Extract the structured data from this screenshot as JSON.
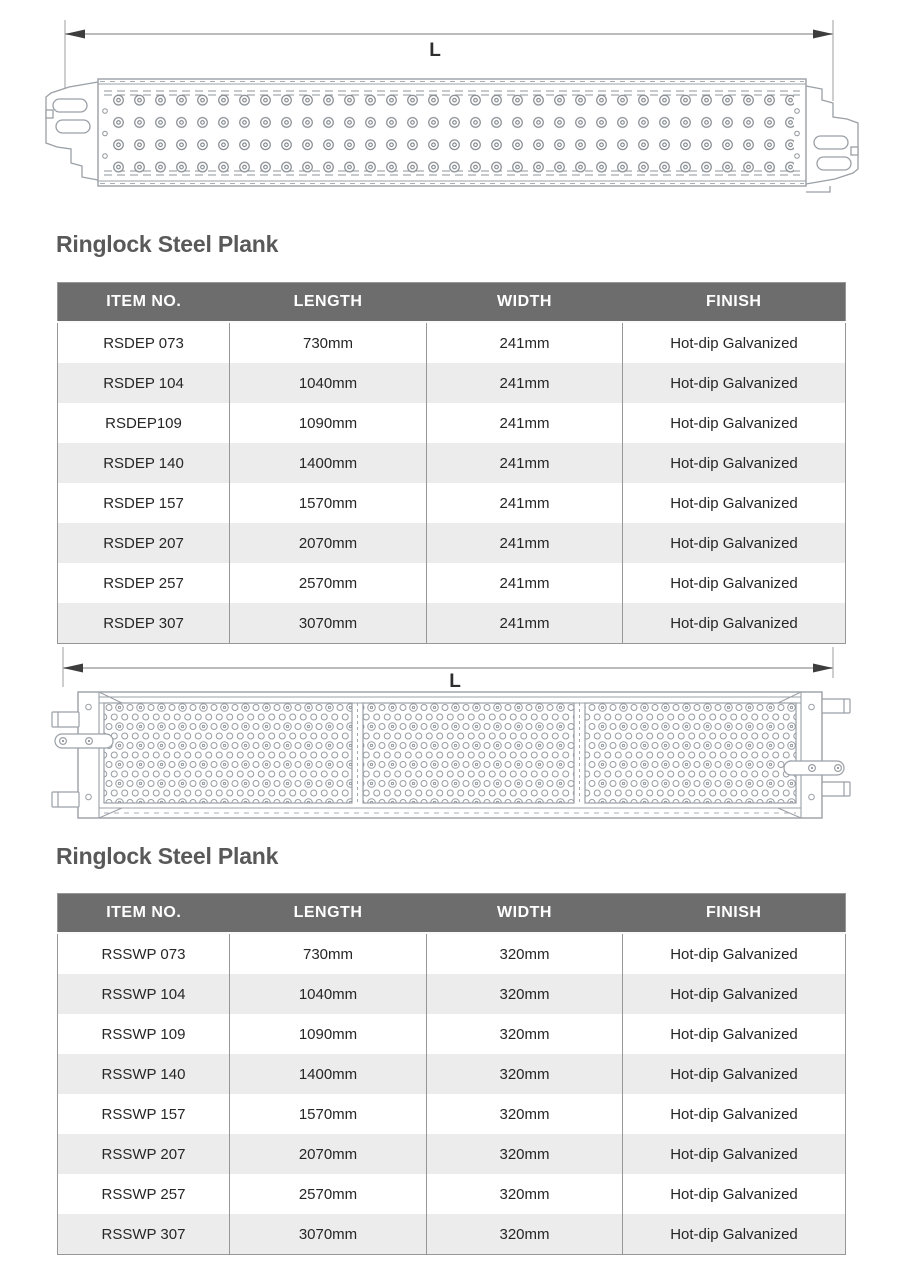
{
  "colors": {
    "table_header_bg": "#6d6d6d",
    "table_header_text": "#ffffff",
    "row_alt_bg": "#ececec",
    "table_border": "#979797",
    "heading_text": "#595959",
    "drawing_line": "#9aa0a6",
    "dimension_arrow": "#3d3d3d"
  },
  "sections": [
    {
      "heading": "Ringlock Steel Plank",
      "drawing": {
        "dim_label": "L"
      },
      "table": {
        "columns": [
          "ITEM NO.",
          "LENGTH",
          "WIDTH",
          "FINISH"
        ],
        "rows": [
          [
            "RSDEP 073",
            "730mm",
            "241mm",
            "Hot-dip Galvanized"
          ],
          [
            "RSDEP 104",
            "1040mm",
            "241mm",
            "Hot-dip Galvanized"
          ],
          [
            "RSDEP109",
            "1090mm",
            "241mm",
            "Hot-dip Galvanized"
          ],
          [
            "RSDEP 140",
            "1400mm",
            "241mm",
            "Hot-dip Galvanized"
          ],
          [
            "RSDEP 157",
            "1570mm",
            "241mm",
            "Hot-dip Galvanized"
          ],
          [
            "RSDEP 207",
            "2070mm",
            "241mm",
            "Hot-dip Galvanized"
          ],
          [
            "RSDEP 257",
            "2570mm",
            "241mm",
            "Hot-dip Galvanized"
          ],
          [
            "RSDEP 307",
            "3070mm",
            "241mm",
            "Hot-dip Galvanized"
          ]
        ]
      }
    },
    {
      "heading": "Ringlock Steel Plank",
      "drawing": {
        "dim_label": "L"
      },
      "table": {
        "columns": [
          "ITEM NO.",
          "LENGTH",
          "WIDTH",
          "FINISH"
        ],
        "rows": [
          [
            "RSSWP 073",
            "730mm",
            "320mm",
            "Hot-dip Galvanized"
          ],
          [
            "RSSWP 104",
            "1040mm",
            "320mm",
            "Hot-dip Galvanized"
          ],
          [
            "RSSWP 109",
            "1090mm",
            "320mm",
            "Hot-dip Galvanized"
          ],
          [
            "RSSWP 140",
            "1400mm",
            "320mm",
            "Hot-dip Galvanized"
          ],
          [
            "RSSWP 157",
            "1570mm",
            "320mm",
            "Hot-dip Galvanized"
          ],
          [
            "RSSWP 207",
            "2070mm",
            "320mm",
            "Hot-dip Galvanized"
          ],
          [
            "RSSWP 257",
            "2570mm",
            "320mm",
            "Hot-dip Galvanized"
          ],
          [
            "RSSWP 307",
            "3070mm",
            "320mm",
            "Hot-dip Galvanized"
          ]
        ]
      }
    }
  ]
}
